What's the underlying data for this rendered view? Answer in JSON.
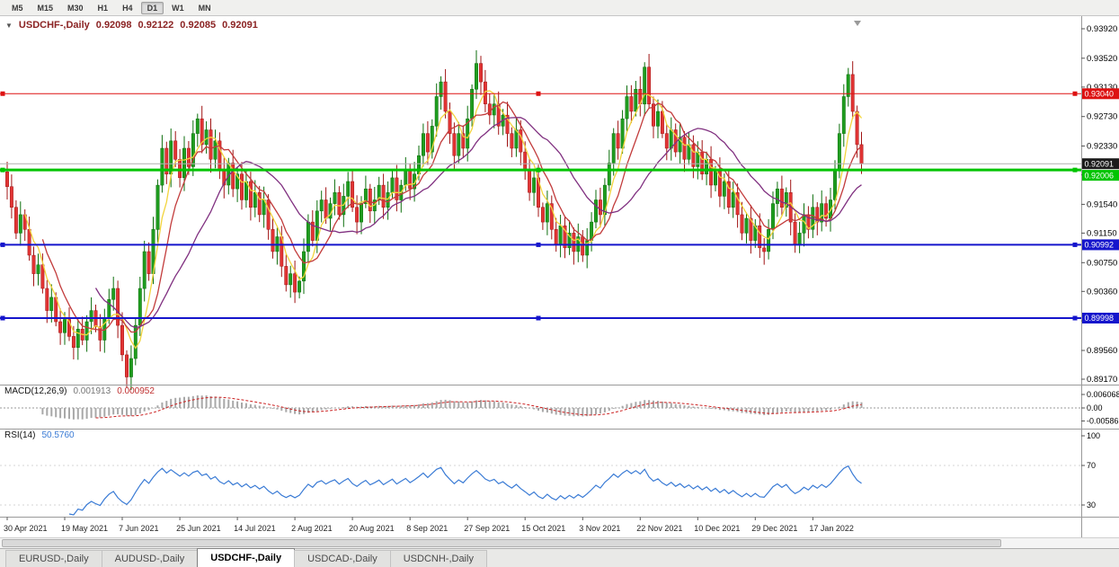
{
  "toolbar": {
    "timeframes": [
      "M5",
      "M15",
      "M30",
      "H1",
      "H4",
      "D1",
      "W1",
      "MN"
    ],
    "active": "D1"
  },
  "chart": {
    "title": {
      "symbol": "USDCHF-,Daily",
      "open": "0.92098",
      "high": "0.92122",
      "low": "0.92085",
      "close": "0.92091"
    },
    "price_axis": [
      "0.93920",
      "0.93520",
      "0.93130",
      "0.92730",
      "0.92330",
      "0.91940",
      "0.91540",
      "0.91150",
      "0.90750",
      "0.90360",
      "0.89960",
      "0.89560",
      "0.89170"
    ],
    "hlines": [
      {
        "price": 0.9304,
        "label": "0.93040",
        "color": "#dd1111",
        "width": 1
      },
      {
        "price": 0.92006,
        "label": "0.92006",
        "color": "#00c400",
        "width": 3
      },
      {
        "price": 0.90992,
        "label": "0.90992",
        "color": "#1515cc",
        "width": 2
      },
      {
        "price": 0.89998,
        "label": "0.89998",
        "color": "#1515cc",
        "width": 2
      }
    ],
    "current_price": {
      "value": 0.92091,
      "label": "0.92091",
      "badge_color": "#1b1b1b",
      "line_color": "#b0b0b0"
    }
  },
  "chart_data": {
    "type": "candlestick",
    "symbol": "USDCHF",
    "timeframe": "Daily",
    "ylim": [
      0.8917,
      0.9392
    ],
    "colors": {
      "bull": "#1f9d1f",
      "bull_edge": "#0c6e0c",
      "bear": "#e23434",
      "bear_edge": "#a01414"
    },
    "closes": [
      0.9178,
      0.915,
      0.9115,
      0.914,
      0.912,
      0.9085,
      0.906,
      0.9072,
      0.904,
      0.901,
      0.9028,
      0.8995,
      0.898,
      0.8998,
      0.8975,
      0.896,
      0.8985,
      0.897,
      0.8995,
      0.901,
      0.8988,
      0.897,
      0.9,
      0.9025,
      0.904,
      0.899,
      0.895,
      0.892,
      0.8945,
      0.899,
      0.904,
      0.909,
      0.906,
      0.912,
      0.918,
      0.923,
      0.9195,
      0.924,
      0.9215,
      0.919,
      0.923,
      0.9205,
      0.925,
      0.927,
      0.9235,
      0.9255,
      0.9215,
      0.924,
      0.92,
      0.918,
      0.921,
      0.9175,
      0.9195,
      0.916,
      0.9185,
      0.915,
      0.917,
      0.914,
      0.916,
      0.912,
      0.909,
      0.911,
      0.907,
      0.9045,
      0.906,
      0.9035,
      0.905,
      0.909,
      0.913,
      0.9105,
      0.9145,
      0.916,
      0.9135,
      0.9155,
      0.917,
      0.914,
      0.9165,
      0.9185,
      0.915,
      0.913,
      0.9155,
      0.9175,
      0.9145,
      0.916,
      0.918,
      0.915,
      0.917,
      0.919,
      0.916,
      0.918,
      0.92,
      0.9175,
      0.9195,
      0.922,
      0.925,
      0.9225,
      0.926,
      0.93,
      0.932,
      0.928,
      0.925,
      0.922,
      0.925,
      0.923,
      0.927,
      0.931,
      0.9345,
      0.932,
      0.929,
      0.9275,
      0.929,
      0.926,
      0.9275,
      0.925,
      0.923,
      0.9255,
      0.9225,
      0.92,
      0.917,
      0.919,
      0.915,
      0.913,
      0.9155,
      0.912,
      0.91,
      0.9125,
      0.9095,
      0.9115,
      0.909,
      0.911,
      0.9085,
      0.9105,
      0.913,
      0.916,
      0.914,
      0.918,
      0.921,
      0.925,
      0.923,
      0.927,
      0.93,
      0.928,
      0.931,
      0.929,
      0.934,
      0.929,
      0.926,
      0.928,
      0.925,
      0.923,
      0.9255,
      0.9225,
      0.9245,
      0.9215,
      0.9235,
      0.9205,
      0.9225,
      0.9195,
      0.9215,
      0.918,
      0.92,
      0.9165,
      0.9185,
      0.915,
      0.917,
      0.914,
      0.9115,
      0.9135,
      0.9105,
      0.9125,
      0.9095,
      0.909,
      0.912,
      0.9155,
      0.9175,
      0.915,
      0.917,
      0.913,
      0.91,
      0.9115,
      0.914,
      0.912,
      0.915,
      0.913,
      0.9155,
      0.9135,
      0.916,
      0.92,
      0.925,
      0.93,
      0.933,
      0.928,
      0.9235,
      0.92091
    ],
    "dates": [
      "30 Apr 2021",
      "19 May 2021",
      "7 Jun 2021",
      "25 Jun 2021",
      "14 Jul 2021",
      "2 Aug 2021",
      "20 Aug 2021",
      "8 Sep 2021",
      "27 Sep 2021",
      "15 Oct 2021",
      "3 Nov 2021",
      "22 Nov 2021",
      "10 Dec 2021",
      "29 Dec 2021",
      "17 Jan 2022"
    ],
    "label_every": 13,
    "moving_averages": [
      {
        "period": 5,
        "color": "#f2d43d"
      },
      {
        "period": 9,
        "color": "#c23b3b"
      },
      {
        "period": 21,
        "color": "#803080"
      }
    ]
  },
  "macd": {
    "name": "MACD(12,26,9)",
    "value_main": "0.001913",
    "value_signal": "0.000952",
    "axis": [
      "0.006068",
      "0.00",
      "-0.005869"
    ],
    "fast": 12,
    "slow": 26,
    "signal": 9,
    "colors": {
      "histogram": "#a8a8a8",
      "signal": "#cc2222"
    }
  },
  "rsi": {
    "name": "RSI(14)",
    "value": "50.5760",
    "axis": [
      "100",
      "70",
      "30"
    ],
    "period": 14,
    "levels": [
      70,
      30
    ],
    "color": "#3a7bd5"
  },
  "tabs": {
    "items": [
      "EURUSD-,Daily",
      "AUDUSD-,Daily",
      "USDCHF-,Daily",
      "USDCAD-,Daily",
      "USDCNH-,Daily"
    ],
    "active_index": 2
  }
}
